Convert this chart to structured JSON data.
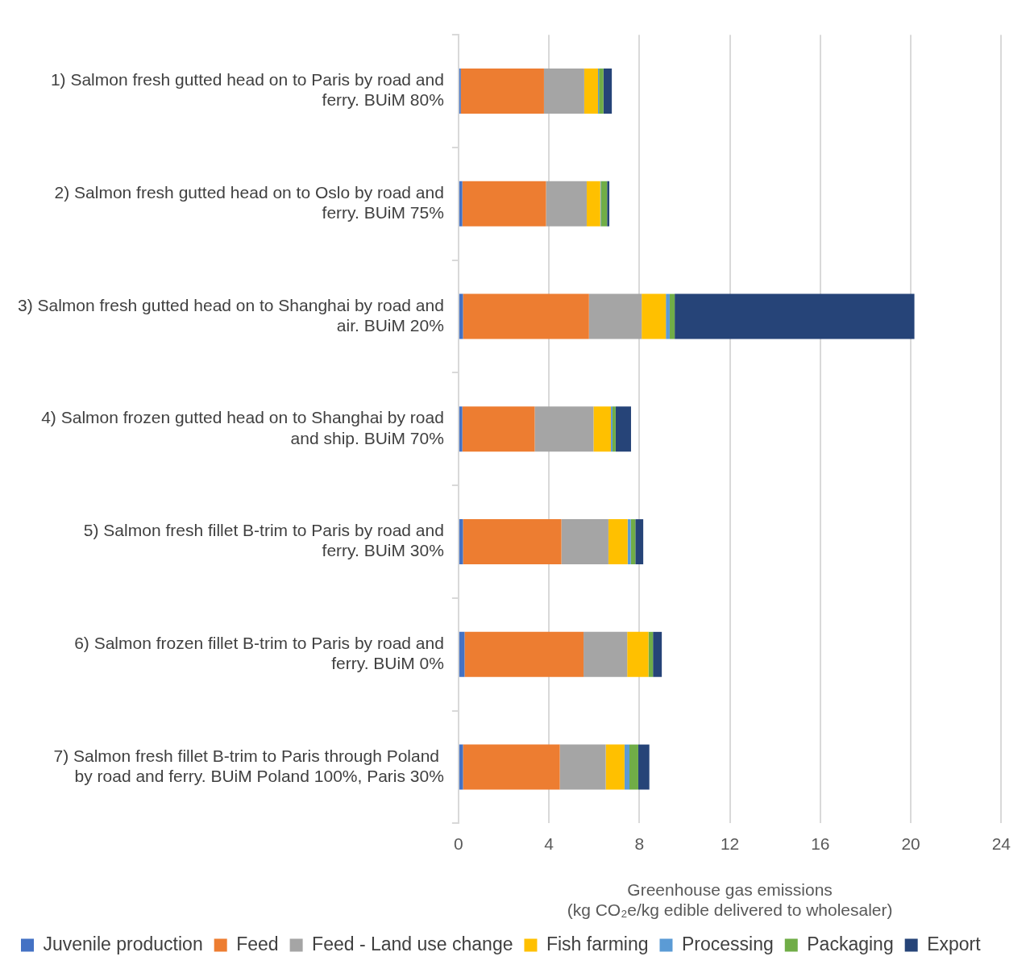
{
  "chart_data": {
    "type": "bar",
    "orientation": "horizontal",
    "stacked": true,
    "categories": [
      "1) Salmon fresh gutted head on to Paris by road and ferry. BUiM 80%",
      "2) Salmon fresh gutted head on to Oslo by road and ferry. BUiM 75%",
      "3) Salmon fresh gutted head on to Shanghai by road and air. BUiM 20%",
      "4) Salmon frozen gutted head on to Shanghai by road and ship. BUiM 70%",
      "5) Salmon fresh fillet B-trim to Paris by road and ferry. BUiM 30%",
      "6) Salmon frozen fillet B-trim to Paris by road and ferry. BUiM 0%",
      "7) Salmon fresh fillet B-trim to Paris through Poland  by road and ferry. BUiM Poland 100%, Paris 30%"
    ],
    "series": [
      {
        "name": "Juvenile production",
        "color": "#4472c4",
        "values": [
          0.1,
          0.17,
          0.2,
          0.17,
          0.2,
          0.27,
          0.2
        ]
      },
      {
        "name": "Feed",
        "color": "#ed7d31",
        "values": [
          3.68,
          3.7,
          5.57,
          3.2,
          4.35,
          5.26,
          4.28
        ]
      },
      {
        "name": "Feed - Land use change",
        "color": "#a5a5a5",
        "values": [
          1.78,
          1.8,
          2.33,
          2.6,
          2.08,
          1.93,
          2.03
        ]
      },
      {
        "name": "Fish farming",
        "color": "#ffc000",
        "values": [
          0.61,
          0.6,
          1.07,
          0.77,
          0.85,
          0.94,
          0.83
        ]
      },
      {
        "name": "Processing",
        "color": "#5b9bd5",
        "values": [
          0.04,
          0.03,
          0.17,
          0.07,
          0.14,
          null,
          0.22
        ]
      },
      {
        "name": "Packaging",
        "color": "#70ad47",
        "values": [
          0.2,
          0.27,
          0.22,
          0.14,
          0.2,
          0.2,
          0.39
        ]
      },
      {
        "name": "Export",
        "color": "#264478",
        "values": [
          0.37,
          0.1,
          10.6,
          0.68,
          0.35,
          0.39,
          0.49
        ]
      }
    ],
    "xlabel": "Greenhouse gas emissions\n(kg CO₂e/kg edible delivered to wholesaler)",
    "xlim": [
      0,
      24
    ],
    "xticks": [
      0,
      4,
      8,
      12,
      16,
      20,
      24
    ],
    "grid": "x",
    "legend": "bottom"
  }
}
